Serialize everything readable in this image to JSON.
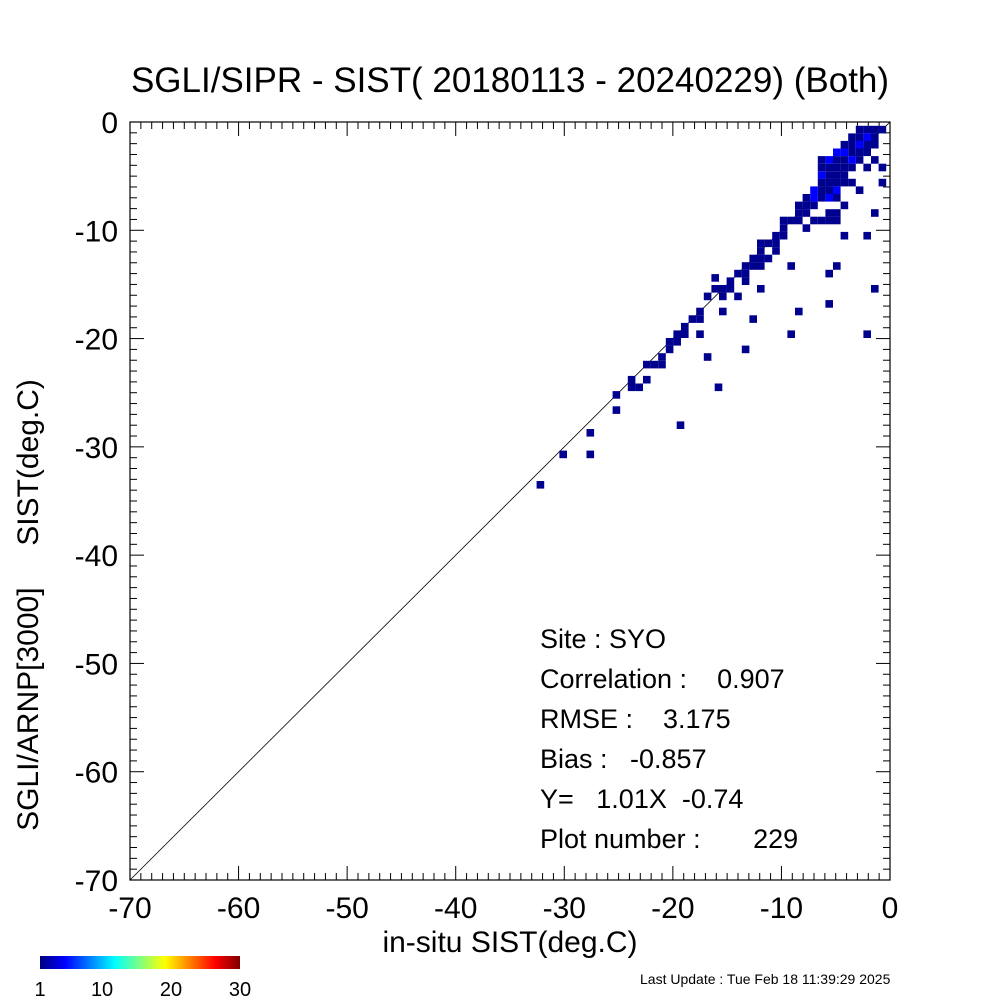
{
  "chart_data": {
    "type": "heatmap",
    "title": "SGLI/SIPR - SIST( 20180113 - 20240229) (Both)",
    "xlabel": "in-situ SIST(deg.C)",
    "ylabel": "SGLI/ARNP[3000]     SIST(deg.C)",
    "xlim": [
      -70,
      0
    ],
    "ylim": [
      -70,
      0
    ],
    "xticks": [
      "-70",
      "-60",
      "-50",
      "-40",
      "-30",
      "-20",
      "-10",
      "0"
    ],
    "yticks": [
      "-70",
      "-60",
      "-50",
      "-40",
      "-30",
      "-20",
      "-10",
      "0"
    ],
    "reference_line": "1:1",
    "bin_size": 0.7,
    "grid": false,
    "points": [
      [
        -32.2,
        -33.5
      ],
      [
        -30.1,
        -30.7
      ],
      [
        -27.6,
        -30.7
      ],
      [
        -27.6,
        -28.7
      ],
      [
        -25.2,
        -26.6
      ],
      [
        -25.2,
        -25.2
      ],
      [
        -23.8,
        -24.5
      ],
      [
        -23.8,
        -23.8
      ],
      [
        -23.1,
        -24.5
      ],
      [
        -22.4,
        -23.8
      ],
      [
        -22.4,
        -22.4
      ],
      [
        -21.7,
        -22.4
      ],
      [
        -21.0,
        -22.4
      ],
      [
        -21.0,
        -21.7
      ],
      [
        -20.3,
        -21.0
      ],
      [
        -20.3,
        -20.3
      ],
      [
        -19.6,
        -20.3
      ],
      [
        -19.6,
        -19.6
      ],
      [
        -18.9,
        -19.6
      ],
      [
        -18.9,
        -18.9
      ],
      [
        -19.3,
        -28.0
      ],
      [
        -18.2,
        -18.2
      ],
      [
        -17.5,
        -17.5
      ],
      [
        -17.5,
        -19.6
      ],
      [
        -16.8,
        -21.7
      ],
      [
        -16.8,
        -16.1
      ],
      [
        -16.1,
        -15.4
      ],
      [
        -16.1,
        -14.4
      ],
      [
        -15.8,
        -24.5
      ],
      [
        -15.4,
        -15.4
      ],
      [
        -15.4,
        -17.5
      ],
      [
        -14.7,
        -14.7
      ],
      [
        -14.7,
        -15.4
      ],
      [
        -14.0,
        -14.0
      ],
      [
        -14.0,
        -16.1
      ],
      [
        -13.3,
        -13.3
      ],
      [
        -13.3,
        -14.7
      ],
      [
        -13.3,
        -21.0
      ],
      [
        -12.6,
        -18.2
      ],
      [
        -12.6,
        -12.6
      ],
      [
        -12.6,
        -13.3
      ],
      [
        -11.9,
        -12.6
      ],
      [
        -11.9,
        -11.9
      ],
      [
        -11.9,
        -13.3
      ],
      [
        -11.2,
        -11.2
      ],
      [
        -11.2,
        -12.6
      ],
      [
        -11.9,
        -15.4
      ],
      [
        -10.5,
        -10.5
      ],
      [
        -10.5,
        -11.2
      ],
      [
        -9.8,
        -9.8
      ],
      [
        -9.8,
        -10.5
      ],
      [
        -9.1,
        -9.1
      ],
      [
        -9.1,
        -13.3
      ],
      [
        -9.1,
        -19.6
      ],
      [
        -8.4,
        -8.4
      ],
      [
        -8.4,
        -9.1
      ],
      [
        -8.4,
        -17.5
      ],
      [
        -7.7,
        -7.7
      ],
      [
        -7.7,
        -8.4
      ],
      [
        -7.7,
        -9.8
      ],
      [
        -7.0,
        -7.0
      ],
      [
        -7.0,
        -7.7
      ],
      [
        -7.0,
        -9.1
      ],
      [
        -6.3,
        -3.5
      ],
      [
        -6.3,
        -4.2
      ],
      [
        -6.3,
        -4.9
      ],
      [
        -6.3,
        -5.6
      ],
      [
        -6.3,
        -6.3
      ],
      [
        -6.3,
        -7.0
      ],
      [
        -6.3,
        -9.1
      ],
      [
        -5.6,
        -3.5
      ],
      [
        -5.6,
        -4.2
      ],
      [
        -5.6,
        -4.9
      ],
      [
        -5.6,
        -5.6
      ],
      [
        -5.6,
        -6.3
      ],
      [
        -5.6,
        -7.0
      ],
      [
        -5.6,
        -8.4
      ],
      [
        -5.6,
        -9.1
      ],
      [
        -5.6,
        -14.0
      ],
      [
        -5.6,
        -16.8
      ],
      [
        -4.9,
        -2.8
      ],
      [
        -4.9,
        -3.5
      ],
      [
        -4.9,
        -4.2
      ],
      [
        -4.9,
        -4.9
      ],
      [
        -4.9,
        -5.6
      ],
      [
        -4.9,
        -6.3
      ],
      [
        -4.9,
        -7.0
      ],
      [
        -4.9,
        -9.1
      ],
      [
        -4.9,
        -13.3
      ],
      [
        -4.2,
        -2.1
      ],
      [
        -4.2,
        -2.8
      ],
      [
        -4.2,
        -3.5
      ],
      [
        -4.2,
        -4.2
      ],
      [
        -4.2,
        -4.9
      ],
      [
        -4.2,
        -5.6
      ],
      [
        -4.2,
        -7.7
      ],
      [
        -4.2,
        -10.5
      ],
      [
        -3.5,
        -1.4
      ],
      [
        -3.5,
        -2.1
      ],
      [
        -3.5,
        -2.8
      ],
      [
        -3.5,
        -3.5
      ],
      [
        -3.5,
        -4.2
      ],
      [
        -3.5,
        -5.6
      ],
      [
        -2.8,
        -0.7
      ],
      [
        -2.8,
        -1.4
      ],
      [
        -2.8,
        -2.1
      ],
      [
        -2.8,
        -2.8
      ],
      [
        -2.8,
        -3.5
      ],
      [
        -2.8,
        -6.3
      ],
      [
        -2.1,
        -0.7
      ],
      [
        -2.1,
        -1.4
      ],
      [
        -2.1,
        -2.1
      ],
      [
        -2.1,
        -2.8
      ],
      [
        -2.1,
        -4.2
      ],
      [
        -2.1,
        -10.5
      ],
      [
        -2.1,
        -19.6
      ],
      [
        -1.4,
        -0.7
      ],
      [
        -1.4,
        -1.4
      ],
      [
        -1.4,
        -2.1
      ],
      [
        -1.4,
        -3.5
      ],
      [
        -1.4,
        -15.4
      ],
      [
        -1.4,
        -8.4
      ],
      [
        -0.7,
        -4.2
      ],
      [
        -0.7,
        -5.6
      ],
      [
        -0.7,
        -0.7
      ],
      [
        -7.0,
        -6.3
      ],
      [
        -4.9,
        -8.4
      ],
      [
        -13.3,
        -14.0
      ],
      [
        -11.9,
        -11.2
      ],
      [
        -10.5,
        -11.9
      ],
      [
        -9.8,
        -9.1
      ],
      [
        -8.4,
        -7.7
      ],
      [
        -7.7,
        -7.0
      ],
      [
        -15.4,
        -16.1
      ],
      [
        -17.5,
        -18.2
      ]
    ],
    "colorbar": {
      "ticks": [
        "1",
        "10",
        "20",
        "30"
      ],
      "colors": [
        "#00007f",
        "#0000ff",
        "#007fff",
        "#00ffff",
        "#7fff7f",
        "#ffff00",
        "#ff7f00",
        "#ff0000",
        "#7f0000"
      ]
    }
  },
  "annotation": {
    "site": "Site : SYO",
    "correlation": "Correlation :    0.907",
    "rmse": "RMSE :    3.175",
    "bias": "Bias :   -0.857",
    "regression": "Y=   1.01X  -0.74",
    "plot_number": "Plot number :       229"
  },
  "footer": {
    "last_update": "Last Update : Tue Feb 18 11:39:29 2025"
  }
}
